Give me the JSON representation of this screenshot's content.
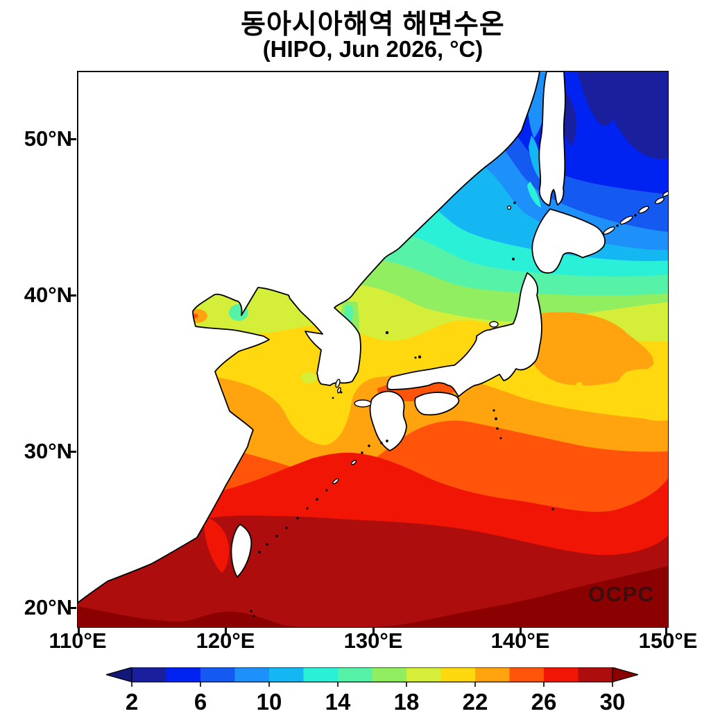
{
  "title": {
    "line1": "동아시아해역 해면수온",
    "line2": "(HIPO, Jun 2026, °C)"
  },
  "watermark": "OCPC",
  "axes": {
    "y_labels": [
      "50°N",
      "40°N",
      "30°N",
      "20°N"
    ],
    "x_labels": [
      "110°E",
      "120°E",
      "130°E",
      "140°E",
      "150°E"
    ]
  },
  "colorbar": {
    "ticks": [
      "2",
      "6",
      "10",
      "14",
      "18",
      "22",
      "26",
      "30"
    ],
    "colors": [
      "#1A1F9E",
      "#0023F2",
      "#155AF0",
      "#1E90FA",
      "#15B7F2",
      "#2BF0D8",
      "#56F2A8",
      "#90EE60",
      "#D4EE3A",
      "#FFD80F",
      "#FFA40E",
      "#FF540A",
      "#F01505",
      "#AD0D0D"
    ],
    "under_color": "#121878",
    "over_color": "#8B0000"
  },
  "chart_data": {
    "type": "heatmap",
    "title": "동아시아해역 해면수온",
    "subtitle": "(HIPO, Jun 2026, °C)",
    "units": "°C",
    "variable": "sea surface temperature",
    "lon_range": [
      110,
      150
    ],
    "lat_range": [
      19,
      54
    ],
    "levels": [
      2,
      4,
      6,
      8,
      10,
      12,
      14,
      16,
      18,
      20,
      22,
      24,
      26,
      28,
      30
    ],
    "level_step": 2,
    "extend": "both",
    "legend_position": "bottom",
    "grid": false,
    "watermark": "OCPC",
    "lons": [
      115,
      125,
      135,
      145
    ],
    "lats": [
      50,
      45,
      40,
      35,
      30,
      25,
      20
    ],
    "sst_estimates": [
      [
        null,
        null,
        null,
        5
      ],
      [
        null,
        null,
        9,
        7
      ],
      [
        null,
        17,
        13,
        15
      ],
      [
        null,
        21,
        22,
        20
      ],
      [
        null,
        24,
        25,
        23
      ],
      [
        29,
        27,
        26,
        25
      ],
      [
        31,
        30,
        29,
        28
      ]
    ]
  }
}
